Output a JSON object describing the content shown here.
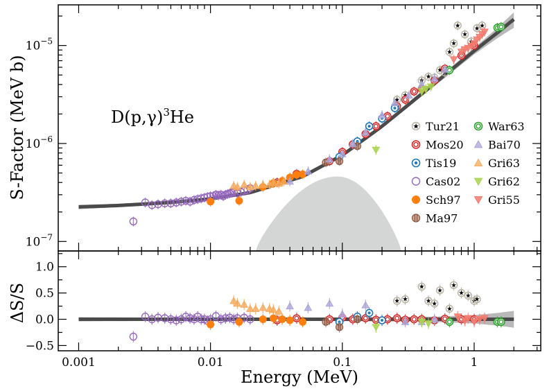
{
  "chart_data": [
    {
      "panel": "main",
      "type": "scatter",
      "x_scale": "log",
      "y_scale": "log",
      "xlim": [
        0.0007,
        3.2
      ],
      "ylim": [
        8e-08,
        2.6e-05
      ],
      "ylabel": "S-Factor (MeV b)",
      "annotation": {
        "main": "D(p,γ)",
        "sup": "3",
        "tail": "He"
      },
      "x_ticks": [
        {
          "value": 0.001,
          "label": "0.001"
        },
        {
          "value": 0.01,
          "label": "0.01"
        },
        {
          "value": 0.1,
          "label": "0.1"
        },
        {
          "value": 1,
          "label": "1"
        }
      ],
      "y_ticks": [
        {
          "value": 1e-07,
          "base": "10",
          "exp": "−7"
        },
        {
          "value": 1e-06,
          "base": "10",
          "exp": "−6"
        },
        {
          "value": 1e-05,
          "base": "10",
          "exp": "−5"
        }
      ],
      "fit_curve": {
        "x": [
          0.001,
          0.002,
          0.005,
          0.01,
          0.02,
          0.05,
          0.1,
          0.2,
          0.5,
          1.0,
          1.5,
          2.0
        ],
        "y": [
          2.25e-07,
          2.33e-07,
          2.5e-07,
          2.72e-07,
          3.15e-07,
          4.6e-07,
          7.6e-07,
          1.5e-06,
          4.1e-06,
          8.8e-06,
          1.35e-05,
          1.85e-05
        ],
        "band_rel": [
          0.05,
          0.04,
          0.03,
          0.025,
          0.025,
          0.03,
          0.04,
          0.05,
          0.06,
          0.08,
          0.12,
          0.18
        ]
      },
      "gamow_peak": {
        "x_start": 0.022,
        "x_peak": 0.092,
        "x_end": 0.28,
        "y_max": 4.6e-07
      },
      "legend": [
        {
          "label": "Tur21",
          "color": "#b7b2a2",
          "marker": "star-circle"
        },
        {
          "label": "Mos20",
          "color": "#d62728",
          "marker": "double-circle"
        },
        {
          "label": "Tis19",
          "color": "#1f77b4",
          "marker": "dot-circle"
        },
        {
          "label": "Cas02",
          "color": "#9467bd",
          "marker": "open-circle"
        },
        {
          "label": "Sch97",
          "color": "#ff7f0e",
          "marker": "filled-circle"
        },
        {
          "label": "Ma97",
          "color": "#c0846a",
          "marker": "hatched-circle"
        },
        {
          "label": "War63",
          "color": "#2ca02c",
          "marker": "double-circle"
        },
        {
          "label": "Bai70",
          "color": "#aaa4d9",
          "marker": "triangle-up"
        },
        {
          "label": "Gri63",
          "color": "#f5a85a",
          "marker": "triangle-up"
        },
        {
          "label": "Gri62",
          "color": "#a8d44e",
          "marker": "triangle-down"
        },
        {
          "label": "Gri55",
          "color": "#f47b6e",
          "marker": "triangle-down"
        }
      ],
      "series": [
        {
          "name": "Tur21",
          "x": [
            0.26,
            0.3,
            0.4,
            0.45,
            0.5,
            0.55,
            0.6,
            0.65,
            0.7,
            0.75,
            0.85,
            0.95,
            1.05,
            1.15
          ],
          "y": [
            2.8e-06,
            3.1e-06,
            4.4e-06,
            4.8e-06,
            4.7e-06,
            5.6e-06,
            5.3e-06,
            8.6e-06,
            1.05e-05,
            1.6e-05,
            1.3e-05,
            1.1e-05,
            1.5e-05,
            1.6e-05
          ]
        },
        {
          "name": "Mos20",
          "x": [
            0.032,
            0.045,
            0.08,
            0.1,
            0.12,
            0.15,
            0.18,
            0.22,
            0.26,
            0.3,
            0.35,
            0.4,
            0.5,
            0.6,
            0.8,
            1.0
          ],
          "y": [
            4e-07,
            4.9e-07,
            6.6e-07,
            8.2e-07,
            9.8e-07,
            1.25e-06,
            1.5e-06,
            1.9e-06,
            2.4e-06,
            2.8e-06,
            3.4e-06,
            3.6e-06,
            4.4e-06,
            5.8e-06,
            7.9e-06,
            1e-05
          ]
        },
        {
          "name": "Tis19",
          "x": [
            0.095,
            0.13,
            0.16,
            0.2,
            0.25
          ],
          "y": [
            7.3e-07,
            1.05e-06,
            1.5e-06,
            1.8e-06,
            2.3e-06
          ]
        },
        {
          "name": "Cas02",
          "x": [
            0.0026,
            0.0032,
            0.0036,
            0.004,
            0.0045,
            0.005,
            0.0055,
            0.006,
            0.0065,
            0.007,
            0.0075,
            0.008,
            0.0085,
            0.009,
            0.0095,
            0.01,
            0.0105,
            0.011,
            0.0115,
            0.012,
            0.0125,
            0.013,
            0.0135,
            0.014,
            0.0145,
            0.015,
            0.016,
            0.017,
            0.018,
            0.019,
            0.02
          ],
          "y": [
            1.6e-07,
            2.5e-07,
            2.35e-07,
            2.4e-07,
            2.45e-07,
            2.45e-07,
            2.5e-07,
            2.55e-07,
            2.6e-07,
            2.55e-07,
            2.65e-07,
            2.7e-07,
            2.75e-07,
            2.8e-07,
            2.85e-07,
            2.9e-07,
            2.9e-07,
            3e-07,
            2.95e-07,
            3e-07,
            2.9e-07,
            3e-07,
            3.05e-07,
            3.1e-07,
            3.15e-07,
            3.2e-07,
            3.1e-07,
            3.2e-07,
            3.3e-07,
            3.35e-07,
            3.5e-07
          ]
        },
        {
          "name": "Sch97",
          "x": [
            0.01,
            0.0165,
            0.025,
            0.03,
            0.035,
            0.04,
            0.045,
            0.05
          ],
          "y": [
            2.55e-07,
            2.6e-07,
            3.6e-07,
            3.95e-07,
            4.15e-07,
            4.5e-07,
            4.8e-07,
            4.85e-07
          ]
        },
        {
          "name": "Ma97",
          "x": [
            0.075,
            0.095,
            0.13
          ],
          "y": [
            6.4e-07,
            6.6e-07,
            9.4e-07
          ]
        },
        {
          "name": "War63",
          "x": [
            0.65,
            1.5,
            1.6
          ],
          "y": [
            5.6e-06,
            1.52e-05,
            1.55e-05
          ]
        },
        {
          "name": "Bai70",
          "x": [
            0.04,
            0.055,
            0.08,
            0.1,
            0.12,
            0.15,
            0.2,
            0.25,
            0.32,
            0.4,
            0.5,
            0.6
          ],
          "y": [
            4.1e-07,
            5.2e-07,
            6.9e-07,
            7.8e-07,
            9.9e-07,
            1.3e-06,
            1.95e-06,
            2.6e-06,
            3.1e-06,
            4e-06,
            4.6e-06,
            5.7e-06
          ]
        },
        {
          "name": "Gri63",
          "x": [
            0.015,
            0.016,
            0.018,
            0.02,
            0.022,
            0.025,
            0.028,
            0.03,
            0.033,
            0.036
          ],
          "y": [
            3.7e-07,
            3.6e-07,
            3.8e-07,
            3.6e-07,
            3.7e-07,
            3.8e-07,
            3.8e-07,
            4e-07,
            3.9e-07,
            4.1e-07
          ]
        },
        {
          "name": "Gri62",
          "x": [
            0.18,
            0.4,
            0.43,
            0.47
          ],
          "y": [
            8.6e-07,
            3.4e-06,
            3.6e-06,
            3.8e-06
          ]
        },
        {
          "name": "Gri55",
          "x": [
            0.7,
            0.8,
            0.85,
            0.9,
            0.95,
            1.0,
            1.05,
            1.1,
            1.15,
            1.2
          ],
          "y": [
            7.2e-06,
            8.6e-06,
            9.1e-06,
            9.4e-06,
            9.9e-06,
            1.05e-05,
            1.15e-05,
            1.22e-05,
            1.3e-05,
            1.38e-05
          ]
        }
      ]
    },
    {
      "panel": "residual",
      "type": "scatter",
      "x_scale": "log",
      "y_scale": "linear",
      "xlim": [
        0.0007,
        3.2
      ],
      "ylim": [
        -0.6,
        1.3
      ],
      "xlabel": "Energy (MeV)",
      "ylabel": "ΔS/S",
      "y_ticks": [
        {
          "value": -0.5,
          "label": "−0.5"
        },
        {
          "value": 0.0,
          "label": "0.0"
        },
        {
          "value": 0.5,
          "label": "0.5"
        },
        {
          "value": 1.0,
          "label": "1.0"
        }
      ],
      "x_ticks": [
        {
          "value": 0.001,
          "label": "0.001"
        },
        {
          "value": 0.01,
          "label": "0.01"
        },
        {
          "value": 0.1,
          "label": "0.1"
        },
        {
          "value": 1,
          "label": "1"
        }
      ],
      "band": {
        "x": [
          0.001,
          0.01,
          0.1,
          0.5,
          1.0,
          1.5,
          2.0
        ],
        "half_width": [
          0.04,
          0.025,
          0.035,
          0.05,
          0.08,
          0.12,
          0.16
        ]
      },
      "series": [
        {
          "name": "Tur21",
          "x": [
            0.26,
            0.3,
            0.4,
            0.45,
            0.5,
            0.55,
            0.65,
            0.7,
            0.8,
            0.9,
            1.0,
            1.05
          ],
          "y": [
            0.35,
            0.38,
            0.62,
            0.35,
            0.3,
            0.55,
            0.2,
            0.65,
            0.5,
            0.45,
            0.35,
            0.38
          ]
        },
        {
          "name": "Mos20",
          "x": [
            0.032,
            0.045,
            0.08,
            0.1,
            0.12,
            0.15,
            0.18,
            0.22,
            0.26,
            0.3,
            0.35,
            0.4,
            0.5,
            0.6,
            0.8,
            1.0
          ],
          "y": [
            -0.02,
            0.02,
            0.0,
            0.03,
            0.0,
            0.02,
            -0.01,
            0.0,
            0.02,
            -0.01,
            0.0,
            0.0,
            -0.02,
            0.01,
            0.0,
            0.0
          ]
        },
        {
          "name": "Tis19",
          "x": [
            0.095,
            0.13,
            0.16,
            0.2
          ],
          "y": [
            -0.05,
            0.05,
            0.12,
            -0.02
          ]
        },
        {
          "name": "Cas02",
          "x": [
            0.0026,
            0.0032,
            0.0036,
            0.004,
            0.0045,
            0.005,
            0.0055,
            0.006,
            0.0065,
            0.007,
            0.0075,
            0.008,
            0.0085,
            0.009,
            0.0095,
            0.01,
            0.011,
            0.012,
            0.013,
            0.014,
            0.015,
            0.016,
            0.018,
            0.02
          ],
          "y": [
            -0.33,
            0.05,
            0.0,
            0.03,
            0.02,
            0.0,
            -0.02,
            0.0,
            0.05,
            0.02,
            0.0,
            0.05,
            0.0,
            0.0,
            -0.03,
            0.0,
            0.06,
            0.0,
            0.02,
            0.03,
            0.0,
            0.02,
            0.03,
            0.0
          ]
        },
        {
          "name": "Sch97",
          "x": [
            0.01,
            0.0165,
            0.025,
            0.03,
            0.035,
            0.04,
            0.05
          ],
          "y": [
            -0.1,
            -0.05,
            0.0,
            0.02,
            0.0,
            -0.02,
            -0.05
          ]
        },
        {
          "name": "Ma97",
          "x": [
            0.075,
            0.095,
            0.13
          ],
          "y": [
            -0.05,
            -0.15,
            0.0
          ]
        },
        {
          "name": "War63",
          "x": [
            0.65,
            1.5,
            1.6
          ],
          "y": [
            -0.05,
            -0.05,
            -0.05
          ]
        },
        {
          "name": "Bai70",
          "x": [
            0.04,
            0.055,
            0.08,
            0.1,
            0.15,
            0.3,
            0.4,
            0.5
          ],
          "y": [
            0.25,
            0.22,
            0.3,
            0.1,
            0.27,
            -0.05,
            -0.05,
            0.0
          ]
        },
        {
          "name": "Gri63",
          "x": [
            0.015,
            0.016,
            0.018,
            0.02,
            0.022,
            0.025,
            0.028,
            0.03,
            0.033
          ],
          "y": [
            0.35,
            0.3,
            0.28,
            0.2,
            0.2,
            0.22,
            0.2,
            0.18,
            0.15
          ]
        },
        {
          "name": "Gri62",
          "x": [
            0.18,
            0.4,
            0.45
          ],
          "y": [
            -0.15,
            -0.05,
            -0.08
          ]
        },
        {
          "name": "Gri55",
          "x": [
            0.75,
            0.85,
            0.9,
            1.0,
            1.1,
            1.2
          ],
          "y": [
            0.05,
            -0.03,
            0.02,
            -0.05,
            0.0,
            0.02
          ]
        }
      ]
    }
  ]
}
